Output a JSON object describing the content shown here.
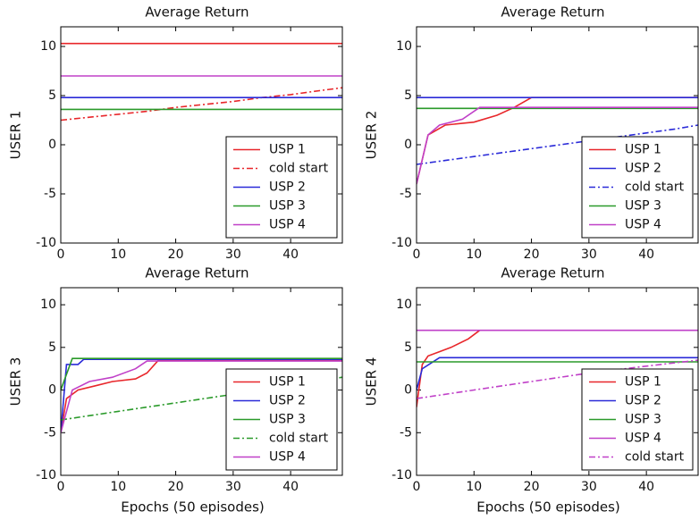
{
  "chart_data": [
    {
      "type": "line",
      "title": "Average Return",
      "ylabel": "USER 1",
      "xlim": [
        0,
        49
      ],
      "ylim": [
        -10,
        12
      ],
      "xticks": [
        0,
        10,
        20,
        30,
        40
      ],
      "yticks": [
        -10,
        -5,
        0,
        5,
        10
      ],
      "legend": "lower right",
      "series": [
        {
          "name": "USP 1",
          "color": "#e8262a",
          "linestyle": "solid",
          "x": [
            0,
            49
          ],
          "values": [
            10.3,
            10.3
          ]
        },
        {
          "name": "cold start",
          "color": "#e8262a",
          "linestyle": "dashdot",
          "x": [
            0,
            5,
            10,
            15,
            20,
            25,
            30,
            35,
            40,
            45,
            49
          ],
          "values": [
            2.5,
            2.8,
            3.1,
            3.4,
            3.8,
            4.1,
            4.4,
            4.8,
            5.1,
            5.5,
            5.8
          ]
        },
        {
          "name": "USP 2",
          "color": "#2a2ad8",
          "linestyle": "solid",
          "x": [
            0,
            49
          ],
          "values": [
            4.8,
            4.8
          ]
        },
        {
          "name": "USP 3",
          "color": "#2a9a2a",
          "linestyle": "solid",
          "x": [
            0,
            49
          ],
          "values": [
            3.6,
            3.6
          ]
        },
        {
          "name": "USP 4",
          "color": "#c040c8",
          "linestyle": "solid",
          "x": [
            0,
            49
          ],
          "values": [
            7,
            7
          ]
        }
      ]
    },
    {
      "type": "line",
      "title": "Average Return",
      "ylabel": "USER 2",
      "xlim": [
        0,
        49
      ],
      "ylim": [
        -10,
        12
      ],
      "xticks": [
        0,
        10,
        20,
        30,
        40
      ],
      "yticks": [
        -10,
        -5,
        0,
        5,
        10
      ],
      "legend": "lower right",
      "series": [
        {
          "name": "USP 1",
          "color": "#e8262a",
          "linestyle": "solid",
          "x": [
            0,
            2,
            5,
            10,
            14,
            17,
            20,
            49
          ],
          "values": [
            -4,
            1,
            2,
            2.3,
            3,
            3.8,
            4.8,
            4.8
          ]
        },
        {
          "name": "USP 2",
          "color": "#2a2ad8",
          "linestyle": "solid",
          "x": [
            0,
            49
          ],
          "values": [
            4.8,
            4.8
          ]
        },
        {
          "name": "cold start",
          "color": "#2a2ad8",
          "linestyle": "dashdot",
          "x": [
            0,
            5,
            10,
            15,
            20,
            25,
            30,
            35,
            40,
            45,
            49
          ],
          "values": [
            -2,
            -1.6,
            -1.2,
            -0.8,
            -0.4,
            0,
            0.4,
            0.8,
            1.2,
            1.6,
            2
          ]
        },
        {
          "name": "USP 3",
          "color": "#2a9a2a",
          "linestyle": "solid",
          "x": [
            0,
            49
          ],
          "values": [
            3.7,
            3.7
          ]
        },
        {
          "name": "USP 4",
          "color": "#c040c8",
          "linestyle": "solid",
          "x": [
            0,
            2,
            4,
            8,
            11,
            49
          ],
          "values": [
            -4,
            1,
            2,
            2.6,
            3.8,
            3.8
          ]
        }
      ]
    },
    {
      "type": "line",
      "title": "Average Return",
      "ylabel": "USER 3",
      "xlabel": "Epochs (50 episodes)",
      "xlim": [
        0,
        49
      ],
      "ylim": [
        -10,
        12
      ],
      "xticks": [
        0,
        10,
        20,
        30,
        40
      ],
      "yticks": [
        -10,
        -5,
        0,
        5,
        10
      ],
      "legend": "lower right",
      "series": [
        {
          "name": "USP 1",
          "color": "#e8262a",
          "linestyle": "solid",
          "x": [
            0,
            1,
            3,
            6,
            9,
            13,
            15,
            17,
            49
          ],
          "values": [
            -5,
            -1,
            0,
            0.5,
            1,
            1.3,
            2,
            3.5,
            3.5
          ]
        },
        {
          "name": "USP 2",
          "color": "#2a2ad8",
          "linestyle": "solid",
          "x": [
            0,
            1,
            3,
            4,
            49
          ],
          "values": [
            -5,
            3,
            3,
            3.6,
            3.6
          ]
        },
        {
          "name": "USP 3",
          "color": "#2a9a2a",
          "linestyle": "solid",
          "x": [
            0,
            2,
            49
          ],
          "values": [
            0,
            3.7,
            3.7
          ]
        },
        {
          "name": "cold start",
          "color": "#2a9a2a",
          "linestyle": "dashdot",
          "x": [
            0,
            10,
            20,
            30,
            40,
            49
          ],
          "values": [
            -3.5,
            -2.5,
            -1.5,
            -0.5,
            0.5,
            1.5
          ]
        },
        {
          "name": "USP 4",
          "color": "#c040c8",
          "linestyle": "solid",
          "x": [
            0,
            2,
            5,
            9,
            13,
            15,
            49
          ],
          "values": [
            -5,
            0,
            1,
            1.5,
            2.5,
            3.4,
            3.4
          ]
        }
      ]
    },
    {
      "type": "line",
      "title": "Average Return",
      "ylabel": "USER 4",
      "xlabel": "Epochs (50 episodes)",
      "xlim": [
        0,
        49
      ],
      "ylim": [
        -10,
        12
      ],
      "xticks": [
        0,
        10,
        20,
        30,
        40
      ],
      "yticks": [
        -10,
        -5,
        0,
        5,
        10
      ],
      "legend": "lower right",
      "series": [
        {
          "name": "USP 1",
          "color": "#e8262a",
          "linestyle": "solid",
          "x": [
            0,
            1,
            2,
            4,
            6,
            9,
            11
          ],
          "values": [
            -2,
            3,
            4,
            4.5,
            5,
            6,
            7
          ]
        },
        {
          "name": "USP 2",
          "color": "#2a2ad8",
          "linestyle": "solid",
          "x": [
            0,
            1,
            4,
            49
          ],
          "values": [
            0,
            2.5,
            3.8,
            3.8
          ]
        },
        {
          "name": "USP 3",
          "color": "#2a9a2a",
          "linestyle": "solid",
          "x": [
            0,
            49
          ],
          "values": [
            3.3,
            3.3
          ]
        },
        {
          "name": "USP 4",
          "color": "#c040c8",
          "linestyle": "solid",
          "x": [
            0,
            49
          ],
          "values": [
            7,
            7
          ]
        },
        {
          "name": "cold start",
          "color": "#c040c8",
          "linestyle": "dashdot",
          "x": [
            0,
            10,
            20,
            30,
            40,
            49
          ],
          "values": [
            -1,
            0,
            1,
            2,
            2.8,
            3.5
          ]
        }
      ]
    }
  ]
}
